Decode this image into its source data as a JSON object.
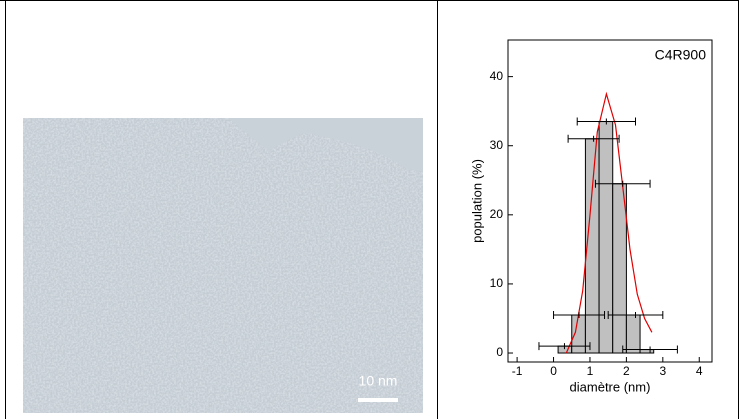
{
  "image": {
    "scale_bar_label": "10 nm"
  },
  "chart_data": {
    "type": "histogram",
    "label": "C4R900",
    "x_label": "diamètre (nm)",
    "y_label": "population (%)",
    "bins": [
      0.125,
      0.5,
      0.875,
      1.25,
      1.625,
      2.0,
      2.375,
      2.75
    ],
    "values": [
      1,
      5.5,
      31,
      33.5,
      24.5,
      5.5,
      0.5
    ],
    "color": "#c0c0c0",
    "error_bars": {
      "x": [
        0.3,
        0.7,
        1.1,
        1.45,
        1.9,
        2.25,
        2.65
      ],
      "y": [
        1,
        5.5,
        31,
        33.5,
        24.5,
        5.5,
        0.5
      ],
      "xerr": [
        0.7,
        0.7,
        0.7,
        0.8,
        0.75,
        0.75,
        0.75
      ]
    },
    "fit": {
      "color": "#e00000",
      "x": [
        0.35,
        0.6,
        0.8,
        1.0,
        1.2,
        1.45,
        1.7,
        1.9,
        2.1,
        2.3,
        2.5,
        2.7
      ],
      "y": [
        0,
        3,
        9,
        20,
        32,
        37.5,
        33,
        24,
        15,
        8.5,
        5,
        3
      ]
    },
    "xlim": [
      -1.25,
      4.35
    ],
    "ylim": [
      -1.3,
      45.3
    ],
    "xticks": [
      -1,
      0,
      1,
      2,
      3,
      4
    ],
    "yticks": [
      0,
      10,
      20,
      30,
      40
    ]
  }
}
